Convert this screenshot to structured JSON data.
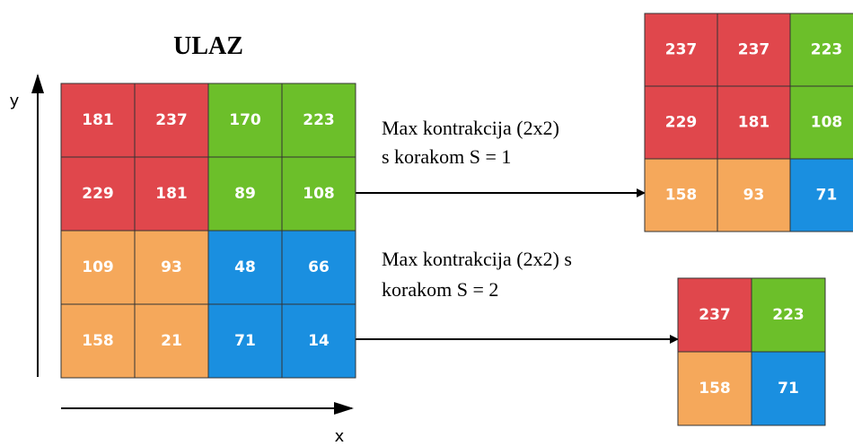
{
  "title": "ULAZ",
  "axes": {
    "y": "y",
    "x": "x"
  },
  "input": {
    "rows": [
      [
        181,
        237,
        170,
        223
      ],
      [
        229,
        181,
        89,
        108
      ],
      [
        109,
        93,
        48,
        66
      ],
      [
        158,
        21,
        71,
        14
      ]
    ]
  },
  "operations": [
    {
      "lines": [
        "Max kontrakcija (2x2)",
        "s korakom S = 1"
      ],
      "output": {
        "rows": [
          [
            237,
            237,
            223
          ],
          [
            229,
            181,
            108
          ],
          [
            158,
            93,
            71
          ]
        ]
      }
    },
    {
      "lines": [
        "Max kontrakcija (2x2) s",
        "korakom S = 2"
      ],
      "output": {
        "rows": [
          [
            237,
            223
          ],
          [
            158,
            71
          ]
        ]
      }
    }
  ]
}
